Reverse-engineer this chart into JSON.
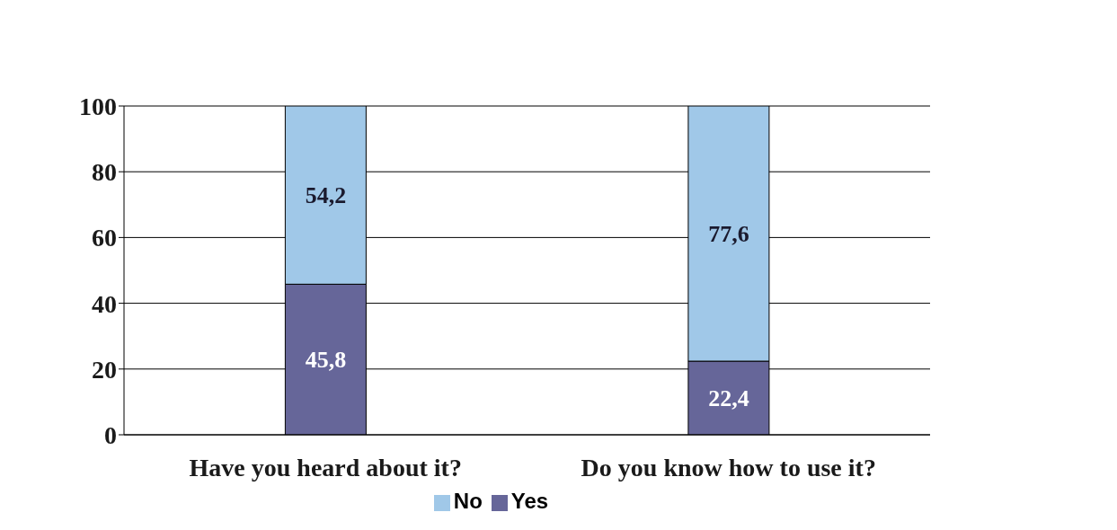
{
  "chart_data": {
    "type": "bar",
    "stacked": true,
    "categories": [
      "Have you heard about it?",
      "Do you know how to use it?"
    ],
    "series": [
      {
        "name": "Yes",
        "color": "#666699",
        "values": [
          45.8,
          22.4
        ],
        "value_labels": [
          "45,8",
          "22,4"
        ]
      },
      {
        "name": "No",
        "color": "#a0c8e8",
        "values": [
          54.2,
          77.6
        ],
        "value_labels": [
          "54,2",
          "77,6"
        ]
      }
    ],
    "ylim": [
      0,
      100
    ],
    "yticks": [
      0,
      20,
      40,
      60,
      80,
      100
    ],
    "grid": "y",
    "legend": "bottom"
  }
}
